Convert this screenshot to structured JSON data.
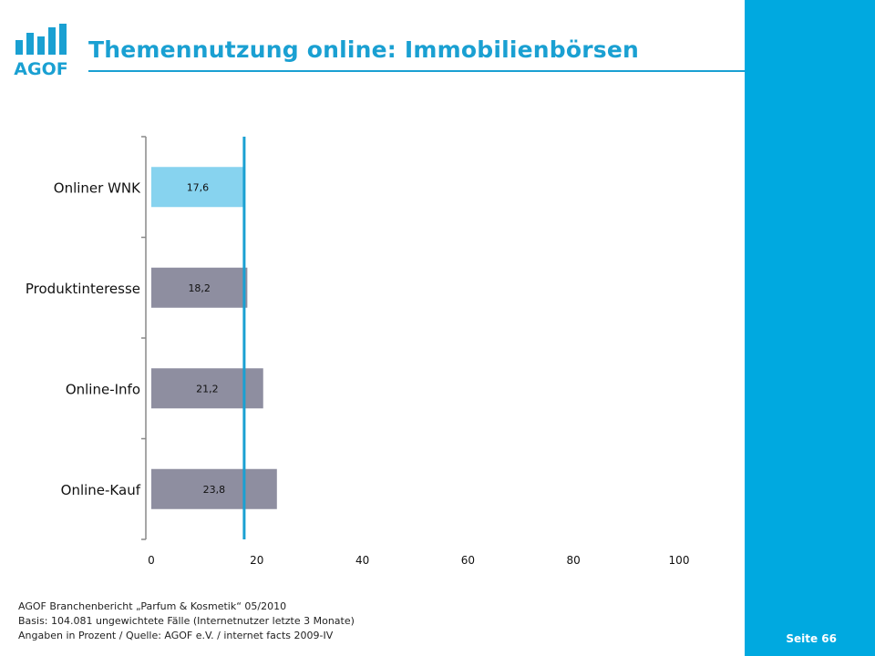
{
  "header": {
    "title": "Themennutzung online: Immobilienbörsen",
    "logo_text": "AGOF"
  },
  "footer": {
    "source_line1": "AGOF Branchenbericht „Parfum & Kosmetik“ 05/2010",
    "source_line2": "Basis: 104.081 ungewichtete Fälle (Internetnutzer letzte 3 Monate)",
    "source_line3": "Angaben in Prozent / Quelle: AGOF e.V. / internet facts 2009-IV",
    "page_number": "Seite 66"
  },
  "colors": {
    "accent": "#00a9e0",
    "title": "#1aa0d2",
    "highlight_bar": "#87d3ef",
    "bar": "#8e8ea0",
    "reference_line": "#1aa0d2"
  },
  "chart_data": {
    "type": "bar",
    "orientation": "horizontal",
    "categories": [
      "Onliner WNK",
      "Produktinteresse",
      "Online-Info",
      "Online-Kauf"
    ],
    "values": [
      17.6,
      18.2,
      21.2,
      23.8
    ],
    "value_labels": [
      "17,6",
      "18,2",
      "21,2",
      "23,8"
    ],
    "highlight_index": 0,
    "reference_value": 17.6,
    "xlim": [
      0,
      100
    ],
    "xticks": [
      0,
      20,
      40,
      60,
      80,
      100
    ],
    "grid": false,
    "title": "",
    "xlabel": "",
    "ylabel": ""
  }
}
